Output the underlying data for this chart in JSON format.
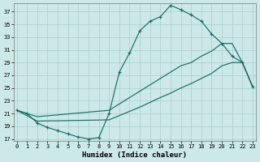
{
  "xlabel": "Humidex (Indice chaleur)",
  "bg_color": "#cce8e8",
  "line_color": "#1a6e65",
  "grid_color": "#aacece",
  "xlim": [
    -0.3,
    23.3
  ],
  "ylim": [
    16.7,
    38.3
  ],
  "yticks": [
    17,
    19,
    21,
    23,
    25,
    27,
    29,
    31,
    33,
    35,
    37
  ],
  "xticks": [
    0,
    1,
    2,
    3,
    4,
    5,
    6,
    7,
    8,
    9,
    10,
    11,
    12,
    13,
    14,
    15,
    16,
    17,
    18,
    19,
    20,
    21,
    22,
    23
  ],
  "series": [
    {
      "x": [
        0,
        1,
        2,
        3,
        4,
        5,
        6,
        7,
        8,
        9,
        10,
        11,
        12,
        13,
        14,
        15,
        16,
        17,
        18,
        19,
        20,
        21,
        22,
        23
      ],
      "y": [
        21.5,
        21.0,
        19.5,
        18.8,
        18.3,
        17.8,
        17.3,
        17.0,
        17.2,
        21.0,
        27.5,
        30.5,
        34.0,
        35.5,
        36.2,
        38.0,
        37.3,
        36.5,
        35.5,
        33.5,
        32.0,
        30.0,
        29.0,
        25.2
      ],
      "marker": true
    },
    {
      "x": [
        0,
        2,
        9,
        12,
        14,
        15,
        16,
        17,
        18,
        19,
        20,
        21,
        22,
        23
      ],
      "y": [
        21.5,
        20.5,
        21.5,
        24.5,
        26.5,
        27.5,
        28.5,
        29.0,
        30.0,
        30.8,
        32.0,
        32.0,
        29.0,
        25.2
      ],
      "marker": false
    },
    {
      "x": [
        0,
        2,
        9,
        12,
        14,
        15,
        16,
        17,
        18,
        19,
        20,
        21,
        22,
        23
      ],
      "y": [
        21.5,
        19.8,
        20.0,
        22.0,
        23.5,
        24.2,
        25.0,
        25.7,
        26.5,
        27.3,
        28.5,
        29.0,
        29.0,
        25.2
      ],
      "marker": false
    }
  ],
  "xlabel_fontsize": 6.5,
  "tick_fontsize": 5.0,
  "marker_size": 3.5,
  "lw": 0.85
}
